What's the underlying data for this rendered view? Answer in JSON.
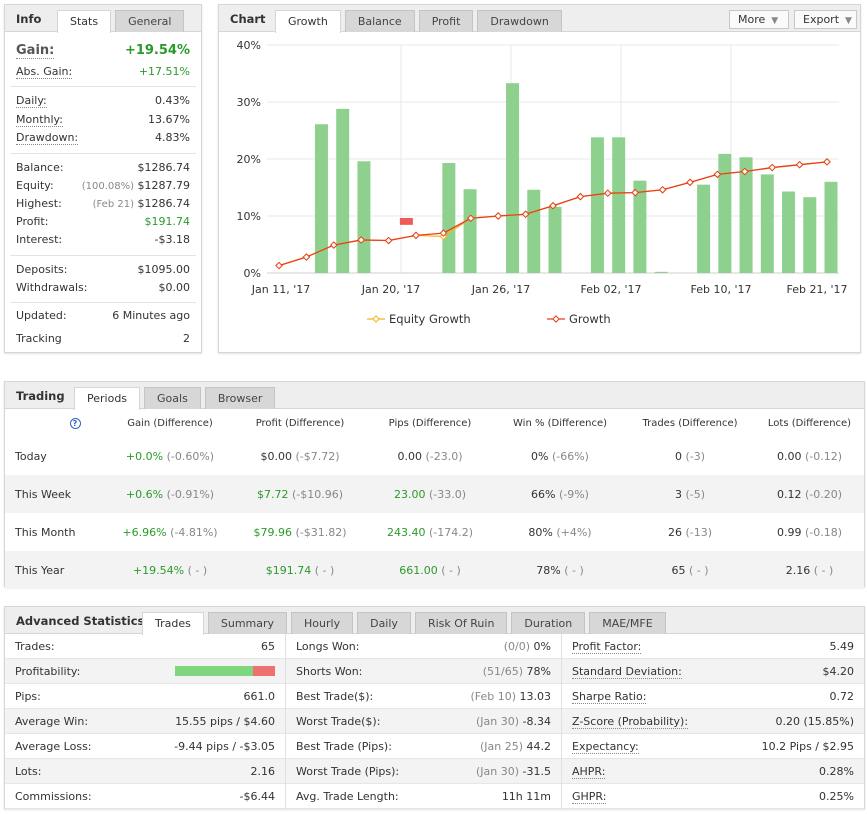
{
  "info": {
    "title": "Info",
    "tabs": [
      "Stats",
      "General"
    ],
    "gain_label": "Gain:",
    "gain_value": "+19.54%",
    "abs_gain_label": "Abs. Gain:",
    "abs_gain_value": "+17.51%",
    "daily_label": "Daily:",
    "daily_value": "0.43%",
    "monthly_label": "Monthly:",
    "monthly_value": "13.67%",
    "drawdown_label": "Drawdown:",
    "drawdown_value": "4.83%",
    "balance_label": "Balance:",
    "balance_value": "$1286.74",
    "equity_label": "Equity:",
    "equity_sub": "(100.08%)",
    "equity_value": "$1287.79",
    "highest_label": "Highest:",
    "highest_sub": "(Feb 21)",
    "highest_value": "$1286.74",
    "profit_label": "Profit:",
    "profit_value": "$191.74",
    "interest_label": "Interest:",
    "interest_value": "-$3.18",
    "deposits_label": "Deposits:",
    "deposits_value": "$1095.00",
    "withdrawals_label": "Withdrawals:",
    "withdrawals_value": "$0.00",
    "updated_label": "Updated:",
    "updated_value": "6 Minutes ago",
    "tracking_label": "Tracking",
    "tracking_value": "2"
  },
  "chart_panel": {
    "title": "Chart",
    "tabs": [
      "Growth",
      "Balance",
      "Profit",
      "Drawdown"
    ],
    "more_label": "More",
    "export_label": "Export"
  },
  "chart_data": {
    "type": "bar",
    "y_ticks": [
      "40%",
      "30%",
      "20%",
      "10%",
      "0%"
    ],
    "ylim": [
      0,
      40
    ],
    "x_ticks": [
      "Jan 11, '17",
      "Jan 20, '17",
      "Jan 26, '17",
      "Feb 02, '17",
      "Feb 10, '17",
      "Feb 21, '17"
    ],
    "legend": [
      "Equity Growth",
      "Growth"
    ],
    "legend_position": "bottom",
    "bars": [
      0,
      0,
      26.1,
      28.8,
      19.6,
      0,
      -1.2,
      0,
      19.3,
      14.7,
      0,
      33.3,
      14.6,
      11.6,
      0,
      23.8,
      23.8,
      16.2,
      0.2,
      0,
      15.5,
      20.9,
      20.3,
      17.3,
      14.3,
      13.3,
      16.0
    ],
    "growth": [
      1.3,
      2.8,
      4.9,
      5.8,
      5.7,
      6.6,
      7.0,
      9.6,
      10.0,
      10.3,
      11.8,
      13.4,
      14.0,
      14.1,
      14.6,
      15.9,
      17.3,
      17.8,
      18.5,
      19.0,
      19.5
    ],
    "equity_growth": [
      1.3,
      2.8,
      4.9,
      5.8,
      5.7,
      6.6,
      6.4,
      9.6,
      10.0,
      10.3,
      11.8,
      13.4,
      14.0,
      14.1,
      14.6,
      15.9,
      17.3,
      17.8,
      18.5,
      19.0,
      19.5
    ],
    "colors": {
      "bar_pos": "#8ed18e",
      "bar_neg": "#ef5b5b",
      "growth": "#e8401c",
      "equity": "#f5b324"
    }
  },
  "trading": {
    "title": "Trading",
    "tabs": [
      "Periods",
      "Goals",
      "Browser"
    ],
    "help_icon": "?",
    "columns": [
      "Gain (Difference)",
      "Profit (Difference)",
      "Pips (Difference)",
      "Win % (Difference)",
      "Trades (Difference)",
      "Lots (Difference)"
    ],
    "rows": [
      {
        "period": "Today",
        "gain": "+0.0%",
        "gain_d": "(-0.60%)",
        "profit": "$0.00",
        "profit_d": "(-$7.72)",
        "pips": "0.00",
        "pips_d": "(-23.0)",
        "win": "0%",
        "win_d": "(-66%)",
        "trades": "0",
        "trades_d": "(-3)",
        "lots": "0.00",
        "lots_d": "(-0.12)"
      },
      {
        "period": "This Week",
        "gain": "+0.6%",
        "gain_d": "(-0.91%)",
        "profit": "$7.72",
        "profit_d": "(-$10.96)",
        "pips": "23.00",
        "pips_d": "(-33.0)",
        "win": "66%",
        "win_d": "(-9%)",
        "trades": "3",
        "trades_d": "(-5)",
        "lots": "0.12",
        "lots_d": "(-0.20)"
      },
      {
        "period": "This Month",
        "gain": "+6.96%",
        "gain_d": "(-4.81%)",
        "profit": "$79.96",
        "profit_d": "(-$31.82)",
        "pips": "243.40",
        "pips_d": "(-174.2)",
        "win": "80%",
        "win_d": "(+4%)",
        "trades": "26",
        "trades_d": "(-13)",
        "lots": "0.99",
        "lots_d": "(-0.18)"
      },
      {
        "period": "This Year",
        "gain": "+19.54%",
        "gain_d": "( - )",
        "profit": "$191.74",
        "profit_d": "( - )",
        "pips": "661.00",
        "pips_d": "( - )",
        "win": "78%",
        "win_d": "( - )",
        "trades": "65",
        "trades_d": "( - )",
        "lots": "2.16",
        "lots_d": "( - )"
      }
    ]
  },
  "advanced": {
    "title": "Advanced Statistics",
    "tabs": [
      "Trades",
      "Summary",
      "Hourly",
      "Daily",
      "Risk Of Ruin",
      "Duration",
      "MAE/MFE"
    ],
    "col1": [
      {
        "label": "Trades:",
        "value": "65"
      },
      {
        "label": "Profitability:",
        "value": "",
        "win_fraction": 0.78
      },
      {
        "label": "Pips:",
        "value": "661.0"
      },
      {
        "label": "Average Win:",
        "value": "15.55 pips / $4.60"
      },
      {
        "label": "Average Loss:",
        "value": "-9.44 pips / -$3.05"
      },
      {
        "label": "Lots:",
        "value": "2.16"
      },
      {
        "label": "Commissions:",
        "value": "-$6.44"
      }
    ],
    "col2": [
      {
        "label": "Longs Won:",
        "sub": "(0/0)",
        "value": "0%"
      },
      {
        "label": "Shorts Won:",
        "sub": "(51/65)",
        "value": "78%"
      },
      {
        "label": "Best Trade($):",
        "sub": "(Feb 10)",
        "value": "13.03"
      },
      {
        "label": "Worst Trade($):",
        "sub": "(Jan 30)",
        "value": "-8.34"
      },
      {
        "label": "Best Trade (Pips):",
        "sub": "(Jan 25)",
        "value": "44.2"
      },
      {
        "label": "Worst Trade (Pips):",
        "sub": "(Jan 30)",
        "value": "-31.5"
      },
      {
        "label": "Avg. Trade Length:",
        "sub": "",
        "value": "11h 11m"
      }
    ],
    "col3": [
      {
        "label": "Profit Factor:",
        "value": "5.49"
      },
      {
        "label": "Standard Deviation:",
        "value": "$4.20"
      },
      {
        "label": "Sharpe Ratio:",
        "value": "0.72"
      },
      {
        "label": "Z-Score (Probability):",
        "value": "0.20 (15.85%)"
      },
      {
        "label": "Expectancy:",
        "value": "10.2 Pips / $2.95"
      },
      {
        "label": "AHPR:",
        "value": "0.28%"
      },
      {
        "label": "GHPR:",
        "value": "0.25%"
      }
    ]
  }
}
